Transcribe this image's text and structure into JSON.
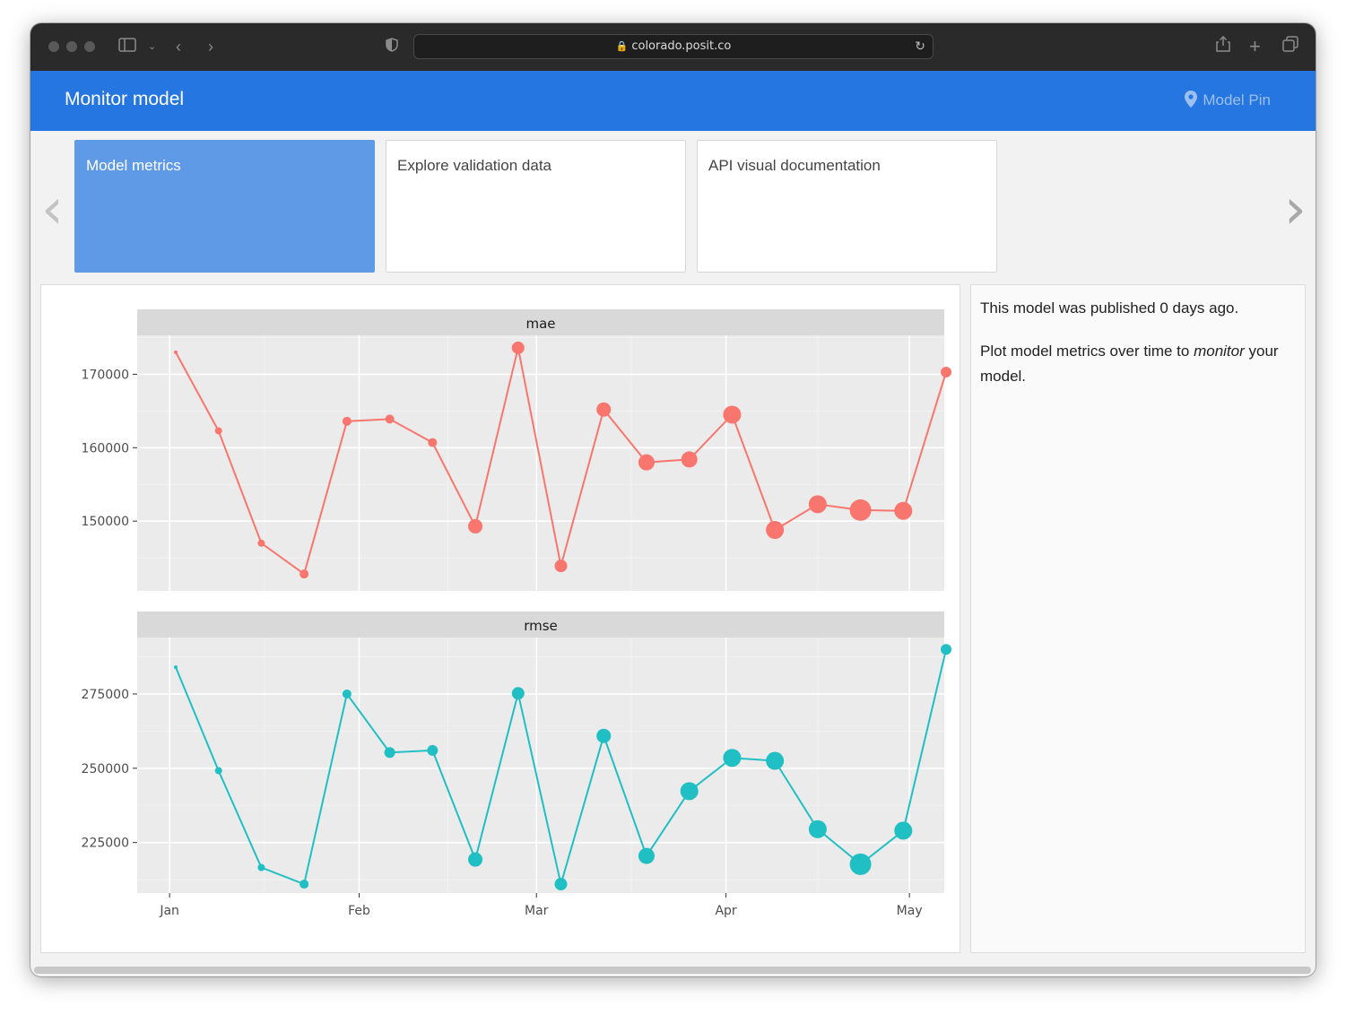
{
  "browser": {
    "url": "colorado.posit.co"
  },
  "app": {
    "title": "Monitor model",
    "pin_link": "Model Pin"
  },
  "tabs": [
    {
      "label": "Model metrics",
      "active": true
    },
    {
      "label": "Explore validation data",
      "active": false
    },
    {
      "label": "API visual documentation",
      "active": false
    }
  ],
  "info": {
    "published": "This model was published 0 days ago.",
    "plot_text_before": "Plot model metrics over time to ",
    "plot_text_em": "monitor",
    "plot_text_after": " your model."
  },
  "colors": {
    "accent": "#2576e0",
    "active_tab": "#5f9ae6",
    "mae": "#f8766d",
    "rmse": "#1fbfc3"
  },
  "chart_data": [
    {
      "type": "line",
      "title": "mae",
      "x": [
        "2024-01-02",
        "2024-01-09",
        "2024-01-16",
        "2024-01-23",
        "2024-01-30",
        "2024-02-06",
        "2024-02-13",
        "2024-02-20",
        "2024-02-27",
        "2024-03-05",
        "2024-03-12",
        "2024-03-19",
        "2024-03-26",
        "2024-04-02",
        "2024-04-09",
        "2024-04-16",
        "2024-04-23",
        "2024-04-30",
        "2024-05-07"
      ],
      "values": [
        173000,
        162300,
        147000,
        142800,
        163600,
        163900,
        160700,
        149300,
        173600,
        143900,
        165200,
        158000,
        158400,
        164500,
        148800,
        152300,
        151500,
        151400,
        170300
      ],
      "point_size": [
        2,
        4,
        4,
        5,
        5,
        5,
        5,
        8,
        7,
        7,
        8,
        9,
        9,
        10,
        10,
        10,
        12,
        10,
        6
      ],
      "yticks": [
        150000,
        160000,
        170000
      ],
      "ylim": [
        140500,
        175300
      ],
      "xticks": [
        "Jan",
        "Feb",
        "Mar",
        "Apr",
        "May"
      ],
      "color": "#f8766d"
    },
    {
      "type": "line",
      "title": "rmse",
      "x": [
        "2024-01-02",
        "2024-01-09",
        "2024-01-16",
        "2024-01-23",
        "2024-01-30",
        "2024-02-06",
        "2024-02-13",
        "2024-02-20",
        "2024-02-27",
        "2024-03-05",
        "2024-03-12",
        "2024-03-19",
        "2024-03-26",
        "2024-04-02",
        "2024-04-09",
        "2024-04-16",
        "2024-04-23",
        "2024-04-30",
        "2024-05-07"
      ],
      "values": [
        284000,
        249200,
        216600,
        211000,
        275000,
        255300,
        256000,
        219300,
        275200,
        211000,
        260900,
        220500,
        242300,
        253500,
        252500,
        229500,
        217700,
        229000,
        290000
      ],
      "point_size": [
        2,
        4,
        4,
        5,
        5,
        6,
        6,
        8,
        7,
        7,
        8,
        9,
        10,
        10,
        10,
        10,
        12,
        10,
        6
      ],
      "yticks": [
        225000,
        250000,
        275000
      ],
      "ylim": [
        208000,
        294000
      ],
      "xticks": [
        "Jan",
        "Feb",
        "Mar",
        "Apr",
        "May"
      ],
      "color": "#1fbfc3"
    }
  ]
}
